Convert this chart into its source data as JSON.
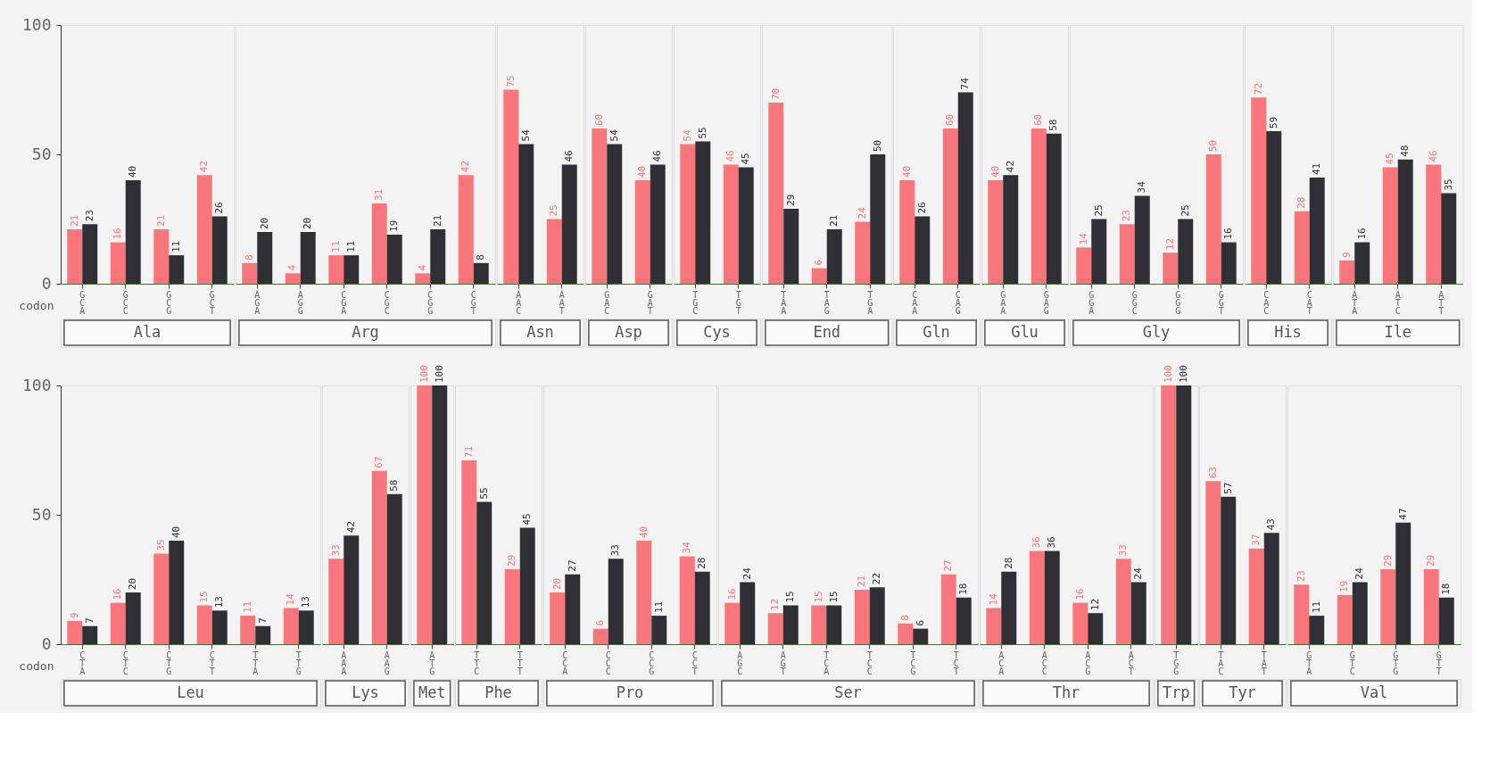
{
  "chart_data": [
    {
      "type": "bar",
      "xlabel": "Ala",
      "annotations": [
        "codon"
      ],
      "categories": [
        "GCA",
        "GCC",
        "GCG",
        "GCT"
      ],
      "series": [
        {
          "color": "#f8767c",
          "values": [
            21,
            16,
            21,
            42
          ]
        },
        {
          "color": "#2f2f35",
          "values": [
            23,
            40,
            11,
            26
          ]
        }
      ],
      "ylim": [
        0,
        100
      ],
      "yticks": [
        0,
        50,
        100
      ],
      "data_labels": true
    },
    {
      "type": "bar",
      "xlabel": "Arg",
      "categories": [
        "AGA",
        "AGG",
        "CGA",
        "CGC",
        "CGG",
        "CGT"
      ],
      "series": [
        {
          "color": "#f8767c",
          "values": [
            8,
            4,
            11,
            31,
            4,
            42
          ]
        },
        {
          "color": "#2f2f35",
          "values": [
            20,
            20,
            11,
            19,
            21,
            8
          ]
        }
      ],
      "ylim": [
        0,
        100
      ],
      "yticks": [
        0,
        50,
        100
      ],
      "data_labels": true,
      "tick_labels": "x"
    },
    {
      "type": "bar",
      "xlabel": "Asn",
      "categories": [
        "AAC",
        "AAT"
      ],
      "series": [
        {
          "color": "#f8767c",
          "values": [
            75,
            25
          ]
        },
        {
          "color": "#2f2f35",
          "values": [
            54,
            46
          ]
        }
      ],
      "ylim": [
        0,
        100
      ],
      "yticks": [
        0,
        50,
        100
      ],
      "data_labels": true,
      "tick_labels": "x"
    },
    {
      "type": "bar",
      "xlabel": "Asp",
      "categories": [
        "GAC",
        "GAT"
      ],
      "series": [
        {
          "color": "#f8767c",
          "values": [
            60,
            40
          ]
        },
        {
          "color": "#2f2f35",
          "values": [
            54,
            46
          ]
        }
      ],
      "ylim": [
        0,
        100
      ],
      "yticks": [
        0,
        50,
        100
      ],
      "data_labels": true,
      "tick_labels": "x"
    },
    {
      "type": "bar",
      "xlabel": "Cys",
      "categories": [
        "TGC",
        "TGT"
      ],
      "series": [
        {
          "color": "#f8767c",
          "values": [
            54,
            46
          ]
        },
        {
          "color": "#2f2f35",
          "values": [
            55,
            45
          ]
        }
      ],
      "ylim": [
        0,
        100
      ],
      "yticks": [
        0,
        50,
        100
      ],
      "data_labels": true,
      "tick_labels": "x"
    },
    {
      "type": "bar",
      "xlabel": "End",
      "categories": [
        "TAA",
        "TAG",
        "TGA"
      ],
      "series": [
        {
          "color": "#f8767c",
          "values": [
            70,
            6,
            24
          ]
        },
        {
          "color": "#2f2f35",
          "values": [
            29,
            21,
            50
          ]
        }
      ],
      "ylim": [
        0,
        100
      ],
      "yticks": [
        0,
        50,
        100
      ],
      "data_labels": true,
      "tick_labels": "x"
    },
    {
      "type": "bar",
      "xlabel": "Gln",
      "categories": [
        "CAA",
        "CAG"
      ],
      "series": [
        {
          "color": "#f8767c",
          "values": [
            40,
            60
          ]
        },
        {
          "color": "#2f2f35",
          "values": [
            26,
            74
          ]
        }
      ],
      "ylim": [
        0,
        100
      ],
      "yticks": [
        0,
        50,
        100
      ],
      "data_labels": true,
      "tick_labels": "x"
    },
    {
      "type": "bar",
      "xlabel": "Glu",
      "categories": [
        "GAA",
        "GAG"
      ],
      "series": [
        {
          "color": "#f8767c",
          "values": [
            40,
            60
          ]
        },
        {
          "color": "#2f2f35",
          "values": [
            42,
            58
          ]
        }
      ],
      "ylim": [
        0,
        100
      ],
      "yticks": [
        0,
        50,
        100
      ],
      "data_labels": true,
      "tick_labels": "x"
    },
    {
      "type": "bar",
      "xlabel": "Gly",
      "categories": [
        "GGA",
        "GGC",
        "GGG",
        "GGT"
      ],
      "series": [
        {
          "color": "#f8767c",
          "values": [
            14,
            23,
            12,
            50
          ]
        },
        {
          "color": "#2f2f35",
          "values": [
            25,
            34,
            25,
            16
          ]
        }
      ],
      "ylim": [
        0,
        100
      ],
      "yticks": [
        0,
        50,
        100
      ],
      "data_labels": true,
      "tick_labels": "x"
    },
    {
      "type": "bar",
      "xlabel": "His",
      "categories": [
        "CAC",
        "CAT"
      ],
      "series": [
        {
          "color": "#f8767c",
          "values": [
            72,
            28
          ]
        },
        {
          "color": "#2f2f35",
          "values": [
            59,
            41
          ]
        }
      ],
      "ylim": [
        0,
        100
      ],
      "yticks": [
        0,
        50,
        100
      ],
      "data_labels": true,
      "tick_labels": "x"
    },
    {
      "type": "bar",
      "xlabel": "Ile",
      "categories": [
        "ATA",
        "ATC",
        "ATT"
      ],
      "series": [
        {
          "color": "#f8767c",
          "values": [
            9,
            45,
            46
          ]
        },
        {
          "color": "#2f2f35",
          "values": [
            16,
            48,
            35
          ]
        }
      ],
      "ylim": [
        0,
        100
      ],
      "yticks": [
        0,
        50,
        100
      ],
      "data_labels": true,
      "tick_labels": "x"
    },
    {
      "type": "bar",
      "xlabel": "Leu",
      "annotations": [
        "codon"
      ],
      "categories": [
        "CTA",
        "CTC",
        "CTG",
        "CTT",
        "TTA",
        "TTG"
      ],
      "series": [
        {
          "color": "#f8767c",
          "values": [
            9,
            16,
            35,
            15,
            11,
            14
          ]
        },
        {
          "color": "#2f2f35",
          "values": [
            7,
            20,
            40,
            13,
            7,
            13
          ]
        }
      ],
      "ylim": [
        0,
        100
      ],
      "yticks": [
        0,
        50,
        100
      ],
      "data_labels": true
    },
    {
      "type": "bar",
      "xlabel": "Lys",
      "categories": [
        "AAA",
        "AAG"
      ],
      "series": [
        {
          "color": "#f8767c",
          "values": [
            33,
            67
          ]
        },
        {
          "color": "#2f2f35",
          "values": [
            42,
            58
          ]
        }
      ],
      "ylim": [
        0,
        100
      ],
      "yticks": [
        0,
        50,
        100
      ],
      "data_labels": true,
      "tick_labels": "x"
    },
    {
      "type": "bar",
      "xlabel": "Met",
      "categories": [
        "ATG"
      ],
      "series": [
        {
          "color": "#f8767c",
          "values": [
            100
          ]
        },
        {
          "color": "#2f2f35",
          "values": [
            100
          ]
        }
      ],
      "ylim": [
        0,
        100
      ],
      "yticks": [
        0,
        50,
        100
      ],
      "data_labels": true,
      "tick_labels": "x"
    },
    {
      "type": "bar",
      "xlabel": "Phe",
      "categories": [
        "TTC",
        "TTT"
      ],
      "series": [
        {
          "color": "#f8767c",
          "values": [
            71,
            29
          ]
        },
        {
          "color": "#2f2f35",
          "values": [
            55,
            45
          ]
        }
      ],
      "ylim": [
        0,
        100
      ],
      "yticks": [
        0,
        50,
        100
      ],
      "data_labels": true,
      "tick_labels": "x"
    },
    {
      "type": "bar",
      "xlabel": "Pro",
      "categories": [
        "CCA",
        "CCC",
        "CCG",
        "CCT"
      ],
      "series": [
        {
          "color": "#f8767c",
          "values": [
            20,
            6,
            40,
            34
          ]
        },
        {
          "color": "#2f2f35",
          "values": [
            27,
            33,
            11,
            28
          ]
        }
      ],
      "ylim": [
        0,
        100
      ],
      "yticks": [
        0,
        50,
        100
      ],
      "data_labels": true,
      "tick_labels": "x"
    },
    {
      "type": "bar",
      "xlabel": "Ser",
      "categories": [
        "AGC",
        "AGT",
        "TCA",
        "TCC",
        "TCG",
        "TCT"
      ],
      "series": [
        {
          "color": "#f8767c",
          "values": [
            16,
            12,
            15,
            21,
            8,
            27
          ]
        },
        {
          "color": "#2f2f35",
          "values": [
            24,
            15,
            15,
            22,
            6,
            18
          ]
        }
      ],
      "ylim": [
        0,
        100
      ],
      "yticks": [
        0,
        50,
        100
      ],
      "data_labels": true,
      "tick_labels": "x"
    },
    {
      "type": "bar",
      "xlabel": "Thr",
      "categories": [
        "ACA",
        "ACC",
        "ACG",
        "ACT"
      ],
      "series": [
        {
          "color": "#f8767c",
          "values": [
            14,
            36,
            16,
            33
          ]
        },
        {
          "color": "#2f2f35",
          "values": [
            28,
            36,
            12,
            24
          ]
        }
      ],
      "ylim": [
        0,
        100
      ],
      "yticks": [
        0,
        50,
        100
      ],
      "data_labels": true,
      "tick_labels": "x"
    },
    {
      "type": "bar",
      "xlabel": "Trp",
      "categories": [
        "TGG"
      ],
      "series": [
        {
          "color": "#f8767c",
          "values": [
            100
          ]
        },
        {
          "color": "#2f2f35",
          "values": [
            100
          ]
        }
      ],
      "ylim": [
        0,
        100
      ],
      "yticks": [
        0,
        50,
        100
      ],
      "data_labels": true,
      "tick_labels": "x"
    },
    {
      "type": "bar",
      "xlabel": "Tyr",
      "categories": [
        "TAC",
        "TAT"
      ],
      "series": [
        {
          "color": "#f8767c",
          "values": [
            63,
            37
          ]
        },
        {
          "color": "#2f2f35",
          "values": [
            57,
            43
          ]
        }
      ],
      "ylim": [
        0,
        100
      ],
      "yticks": [
        0,
        50,
        100
      ],
      "data_labels": true,
      "tick_labels": "x"
    },
    {
      "type": "bar",
      "xlabel": "Val",
      "categories": [
        "GTA",
        "GTC",
        "GTG",
        "GTT"
      ],
      "series": [
        {
          "color": "#f8767c",
          "values": [
            23,
            19,
            29,
            29
          ]
        },
        {
          "color": "#2f2f35",
          "values": [
            11,
            24,
            47,
            18
          ]
        }
      ],
      "ylim": [
        0,
        100
      ],
      "yticks": [
        0,
        50,
        100
      ],
      "data_labels": true,
      "tick_labels": "x"
    }
  ]
}
